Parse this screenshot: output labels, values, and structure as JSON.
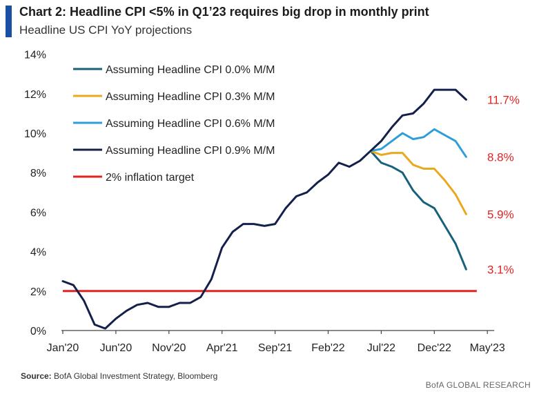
{
  "header": {
    "title": "Chart 2: Headline CPI <5% in Q1’23  requires big drop in monthly print",
    "subtitle": "Headline US CPI YoY projections"
  },
  "footer": {
    "source_label": "Source:",
    "source_text": "BofA Global Investment Strategy, Bloomberg",
    "brand": "BofA GLOBAL RESEARCH"
  },
  "colors": {
    "zero": "#17627a",
    "p3": "#eaa81f",
    "p6": "#2f9ed8",
    "p9": "#14204a",
    "target": "#e52222",
    "end_label": "#e52222"
  },
  "chart_data": {
    "type": "line",
    "title": "Chart 2: Headline CPI <5% in Q1’23  requires big drop in monthly print",
    "subtitle": "Headline US CPI YoY projections",
    "xlabel": "",
    "ylabel": "",
    "ylim": [
      0,
      14
    ],
    "yticks": [
      "0%",
      "2%",
      "4%",
      "6%",
      "8%",
      "10%",
      "12%",
      "14%"
    ],
    "xticks": [
      "Jan'20",
      "Jun'20",
      "Nov'20",
      "Apr'21",
      "Sep'21",
      "Feb'22",
      "Jul'22",
      "Dec'22",
      "May'23"
    ],
    "grid": false,
    "legend_position": "top-left",
    "x_start": "Jan'20",
    "x_end": "May'23",
    "history": {
      "name": "Assuming Headline CPI 0.9% M/M",
      "values": [
        2.5,
        2.3,
        1.5,
        0.3,
        0.1,
        0.6,
        1.0,
        1.3,
        1.4,
        1.2,
        1.2,
        1.4,
        1.4,
        1.7,
        2.6,
        4.2,
        5.0,
        5.4,
        5.4,
        5.3,
        5.4,
        6.2,
        6.8,
        7.0,
        7.5,
        7.9,
        8.5,
        8.3,
        8.6,
        9.1
      ]
    },
    "projections": [
      {
        "key": "zero",
        "name": "Assuming Headline CPI 0.0% M/M",
        "end_label": "3.1%",
        "values": [
          9.1,
          8.5,
          8.3,
          8.0,
          7.1,
          6.5,
          6.2,
          5.3,
          4.4,
          3.1
        ]
      },
      {
        "key": "p3",
        "name": "Assuming Headline CPI 0.3% M/M",
        "end_label": "5.9%",
        "values": [
          9.1,
          8.9,
          9.0,
          9.0,
          8.4,
          8.2,
          8.2,
          7.6,
          6.9,
          5.9
        ]
      },
      {
        "key": "p6",
        "name": "Assuming Headline CPI 0.6% M/M",
        "end_label": "8.8%",
        "values": [
          9.1,
          9.2,
          9.6,
          10.0,
          9.7,
          9.8,
          10.2,
          9.9,
          9.6,
          8.8
        ]
      },
      {
        "key": "p9",
        "name": "Assuming Headline CPI 0.9% M/M",
        "end_label": "11.7%",
        "values": [
          9.1,
          9.6,
          10.3,
          10.9,
          11.0,
          11.5,
          12.2,
          12.2,
          12.2,
          11.7
        ]
      }
    ],
    "target": {
      "name": "2% inflation target",
      "value": 2.0
    },
    "legend": [
      {
        "key": "zero",
        "label": "Assuming Headline CPI 0.0% M/M"
      },
      {
        "key": "p3",
        "label": "Assuming Headline CPI 0.3% M/M"
      },
      {
        "key": "p6",
        "label": "Assuming Headline CPI 0.6% M/M"
      },
      {
        "key": "p9",
        "label": "Assuming Headline CPI 0.9% M/M"
      },
      {
        "key": "target",
        "label": "2% inflation target"
      }
    ]
  }
}
